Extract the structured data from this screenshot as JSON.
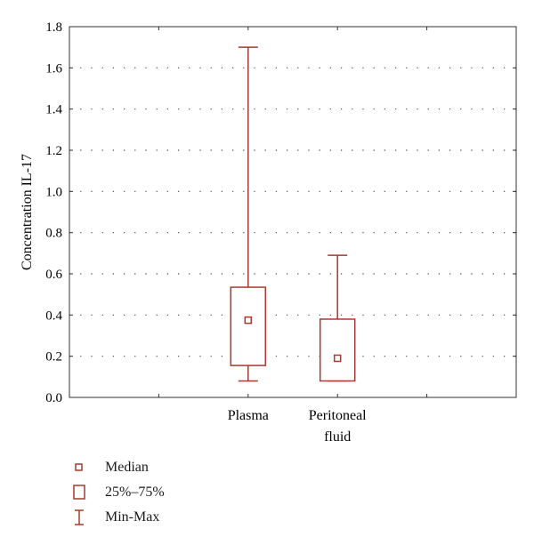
{
  "chart_data": {
    "type": "box",
    "ylabel": "Concentration IL-17",
    "xlabel": "",
    "ylim": [
      0,
      1.8
    ],
    "yticks": [
      "0.0",
      "0.2",
      "0.4",
      "0.6",
      "0.8",
      "1.0",
      "1.2",
      "1.4",
      "1.6",
      "1.8"
    ],
    "grid": "horizontal-dotted",
    "color": "#a63a2e",
    "categories": [
      {
        "label_lines": [
          "Plasma"
        ],
        "min": 0.08,
        "q1": 0.155,
        "median": 0.375,
        "q3": 0.535,
        "max": 1.7
      },
      {
        "label_lines": [
          "Peritoneal",
          "fluid"
        ],
        "min": 0.08,
        "q1": 0.08,
        "median": 0.19,
        "q3": 0.38,
        "max": 0.69
      }
    ]
  },
  "legend": {
    "placement": "bottom-left",
    "items": [
      {
        "symbol": "median-marker",
        "label": "Median"
      },
      {
        "symbol": "box",
        "label": "25%–75%"
      },
      {
        "symbol": "whisker",
        "label": "Min-Max"
      }
    ]
  }
}
